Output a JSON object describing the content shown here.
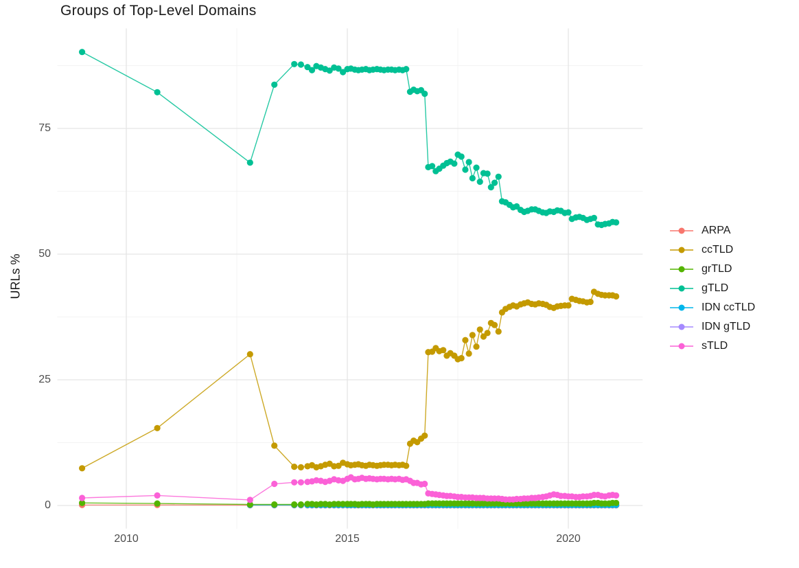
{
  "title": "Groups of Top-Level Domains",
  "y_axis_title": "URLs %",
  "axes": {
    "x_tick_labels": [
      "2010",
      "2015",
      "2020"
    ],
    "x_tick_values": [
      2010,
      2015,
      2020
    ],
    "x_minor_values": [
      2012.5,
      2017.5
    ],
    "y_tick_labels": [
      "0",
      "25",
      "50",
      "75"
    ],
    "y_tick_values": [
      0,
      25,
      50,
      75
    ],
    "y_minor_values": [
      12.5,
      37.5,
      62.5,
      87.5
    ]
  },
  "style": {
    "grid_major_color": "#e5e5e5",
    "grid_minor_color": "#f3f3f3",
    "background": "#ffffff",
    "title_color": "#1a1a1a",
    "tick_label_color": "#4d4d4d"
  },
  "legend": {
    "position": "right",
    "items": [
      {
        "label": "ARPA",
        "color": "#F8766D"
      },
      {
        "label": "ccTLD",
        "color": "#C49A00"
      },
      {
        "label": "grTLD",
        "color": "#53B400"
      },
      {
        "label": "gTLD",
        "color": "#00C094"
      },
      {
        "label": "IDN ccTLD",
        "color": "#00B6EB"
      },
      {
        "label": "IDN gTLD",
        "color": "#A58AFF"
      },
      {
        "label": "sTLD",
        "color": "#FB61D7"
      }
    ]
  },
  "chart_data": {
    "type": "line",
    "title": "Groups of Top-Level Domains",
    "xlabel": "",
    "ylabel": "URLs %",
    "xlim": [
      2008.44,
      2021.68
    ],
    "ylim": [
      -4.6,
      94.9
    ],
    "grid": true,
    "legend_position": "right",
    "draw_order": [
      "IDN gTLD",
      "ARPA",
      "IDN ccTLD",
      "grTLD",
      "sTLD",
      "ccTLD",
      "gTLD"
    ],
    "x": [
      2009.0,
      2010.7,
      2012.8,
      2013.35,
      2013.8,
      2013.95,
      2014.1,
      2014.2,
      2014.3,
      2014.4,
      2014.5,
      2014.6,
      2014.7,
      2014.8,
      2014.9,
      2015.0,
      2015.08,
      2015.17,
      2015.25,
      2015.33,
      2015.42,
      2015.5,
      2015.58,
      2015.67,
      2015.75,
      2015.83,
      2015.92,
      2016.0,
      2016.08,
      2016.17,
      2016.25,
      2016.33,
      2016.42,
      2016.5,
      2016.58,
      2016.67,
      2016.75,
      2016.83,
      2016.92,
      2017.0,
      2017.08,
      2017.17,
      2017.25,
      2017.33,
      2017.42,
      2017.5,
      2017.58,
      2017.67,
      2017.75,
      2017.83,
      2017.92,
      2018.0,
      2018.08,
      2018.17,
      2018.25,
      2018.33,
      2018.42,
      2018.5,
      2018.58,
      2018.67,
      2018.75,
      2018.83,
      2018.92,
      2019.0,
      2019.08,
      2019.17,
      2019.25,
      2019.33,
      2019.42,
      2019.5,
      2019.58,
      2019.67,
      2019.75,
      2019.83,
      2019.92,
      2020.0,
      2020.08,
      2020.17,
      2020.25,
      2020.33,
      2020.42,
      2020.5,
      2020.58,
      2020.67,
      2020.75,
      2020.83,
      2020.92,
      2021.0,
      2021.08
    ],
    "series": [
      {
        "name": "ARPA",
        "color": "#F8766D",
        "values": [
          0.1,
          0.1,
          0.05,
          0.05,
          0.05,
          0.05,
          0.05,
          0.05,
          0.05,
          0.05,
          0.05,
          0.05,
          0.05,
          0.05,
          0.05,
          0.05,
          0.05,
          0.05,
          0.05,
          0.05,
          0.05,
          0.05,
          0.05,
          0.05,
          0.05,
          0.05,
          0.05,
          0.05,
          0.05,
          0.05,
          0.05,
          0.05,
          0.05,
          0.05,
          0.05,
          0.05,
          0.05,
          0.05,
          0.05,
          0.05,
          0.05,
          0.05,
          0.05,
          0.05,
          0.05,
          0.05,
          0.05,
          0.05,
          0.05,
          0.05,
          0.05,
          0.05,
          0.05,
          0.05,
          0.05,
          0.05,
          0.05,
          0.05,
          0.05,
          0.05,
          0.05,
          0.05,
          0.05,
          0.05,
          0.05,
          0.05,
          0.05,
          0.05,
          0.05,
          0.05,
          0.05,
          0.05,
          0.05,
          0.05,
          0.05,
          0.05,
          0.05,
          0.05,
          0.05,
          0.05,
          0.05,
          0.05,
          0.05,
          0.05,
          0.05,
          0.05,
          0.05,
          0.05,
          0.05
        ]
      },
      {
        "name": "ccTLD",
        "color": "#C49A00",
        "values": [
          7.4,
          15.4,
          30.1,
          11.9,
          7.7,
          7.6,
          7.8,
          8.0,
          7.6,
          7.8,
          8.1,
          8.3,
          7.8,
          7.9,
          8.5,
          8.2,
          8.0,
          8.1,
          8.2,
          8.0,
          7.9,
          8.1,
          8.0,
          7.9,
          8.0,
          8.1,
          8.1,
          8.0,
          8.1,
          8.0,
          8.1,
          7.9,
          12.3,
          12.9,
          12.6,
          13.3,
          13.9,
          30.5,
          30.6,
          31.3,
          30.7,
          30.9,
          29.8,
          30.3,
          29.8,
          29.1,
          29.3,
          32.9,
          30.2,
          33.9,
          31.6,
          35.0,
          33.6,
          34.3,
          36.3,
          35.9,
          34.6,
          38.4,
          39.1,
          39.5,
          39.8,
          39.6,
          40.0,
          40.2,
          40.4,
          40.1,
          40.0,
          40.2,
          40.1,
          39.9,
          39.5,
          39.3,
          39.6,
          39.7,
          39.8,
          39.8,
          41.1,
          40.9,
          40.7,
          40.6,
          40.4,
          40.5,
          42.5,
          42.1,
          41.9,
          41.8,
          41.8,
          41.8,
          41.6
        ]
      },
      {
        "name": "grTLD",
        "color": "#53B400",
        "values": [
          0.5,
          0.4,
          0.2,
          0.2,
          0.2,
          0.2,
          0.3,
          0.3,
          0.2,
          0.3,
          0.3,
          0.2,
          0.3,
          0.3,
          0.3,
          0.3,
          0.3,
          0.3,
          0.2,
          0.3,
          0.3,
          0.3,
          0.2,
          0.3,
          0.3,
          0.3,
          0.3,
          0.3,
          0.3,
          0.3,
          0.3,
          0.3,
          0.3,
          0.3,
          0.3,
          0.3,
          0.3,
          0.4,
          0.4,
          0.4,
          0.4,
          0.4,
          0.4,
          0.4,
          0.4,
          0.4,
          0.4,
          0.4,
          0.4,
          0.4,
          0.4,
          0.4,
          0.4,
          0.4,
          0.4,
          0.4,
          0.4,
          0.4,
          0.4,
          0.4,
          0.4,
          0.4,
          0.4,
          0.4,
          0.4,
          0.4,
          0.4,
          0.4,
          0.4,
          0.4,
          0.4,
          0.4,
          0.4,
          0.4,
          0.4,
          0.4,
          0.4,
          0.4,
          0.4,
          0.4,
          0.4,
          0.4,
          0.5,
          0.5,
          0.4,
          0.4,
          0.4,
          0.5,
          0.5
        ]
      },
      {
        "name": "gTLD",
        "color": "#00C094",
        "values": [
          90.2,
          82.2,
          68.2,
          83.7,
          87.8,
          87.7,
          87.2,
          86.6,
          87.4,
          87.1,
          86.8,
          86.5,
          87.1,
          86.9,
          86.2,
          86.8,
          86.9,
          86.7,
          86.6,
          86.7,
          86.8,
          86.6,
          86.7,
          86.8,
          86.7,
          86.6,
          86.7,
          86.7,
          86.6,
          86.7,
          86.6,
          86.8,
          82.3,
          82.7,
          82.4,
          82.6,
          81.9,
          67.3,
          67.5,
          66.5,
          67.0,
          67.6,
          68.1,
          68.4,
          68.0,
          69.8,
          69.4,
          66.8,
          68.3,
          65.1,
          67.2,
          64.4,
          66.1,
          66.0,
          63.3,
          64.2,
          65.4,
          60.5,
          60.3,
          59.8,
          59.3,
          59.5,
          58.8,
          58.4,
          58.6,
          58.9,
          58.9,
          58.6,
          58.3,
          58.2,
          58.5,
          58.4,
          58.7,
          58.6,
          58.2,
          58.3,
          57.0,
          57.3,
          57.4,
          57.2,
          56.8,
          57.0,
          57.2,
          55.9,
          55.8,
          56.0,
          56.1,
          56.4,
          56.3
        ]
      },
      {
        "name": "IDN ccTLD",
        "color": "#00B6EB",
        "values": [
          null,
          null,
          0.1,
          0.1,
          0.1,
          0.1,
          0.1,
          0.1,
          0.1,
          0.1,
          0.1,
          0.1,
          0.1,
          0.1,
          0.1,
          0.1,
          0.1,
          0.1,
          0.1,
          0.1,
          0.1,
          0.1,
          0.1,
          0.1,
          0.1,
          0.1,
          0.1,
          0.1,
          0.1,
          0.1,
          0.1,
          0.1,
          0.1,
          0.1,
          0.1,
          0.1,
          0.1,
          0.1,
          0.1,
          0.1,
          0.1,
          0.1,
          0.1,
          0.1,
          0.1,
          0.1,
          0.1,
          0.1,
          0.1,
          0.1,
          0.1,
          0.1,
          0.1,
          0.1,
          0.1,
          0.1,
          0.1,
          0.1,
          0.1,
          0.1,
          0.1,
          0.1,
          0.1,
          0.1,
          0.1,
          0.1,
          0.1,
          0.1,
          0.1,
          0.1,
          0.1,
          0.1,
          0.1,
          0.1,
          0.1,
          0.1,
          0.1,
          0.1,
          0.1,
          0.1,
          0.1,
          0.1,
          0.1,
          0.1,
          0.1,
          0.1,
          0.1,
          0.1,
          0.1
        ]
      },
      {
        "name": "IDN gTLD",
        "color": "#A58AFF",
        "values": [
          null,
          null,
          null,
          null,
          null,
          null,
          0.05,
          0.05,
          0.05,
          0.05,
          0.05,
          0.05,
          0.05,
          0.05,
          0.05,
          0.05,
          0.05,
          0.05,
          0.05,
          0.05,
          0.05,
          0.05,
          0.05,
          0.05,
          0.05,
          0.05,
          0.05,
          0.05,
          0.05,
          0.05,
          0.05,
          0.05,
          0.05,
          0.05,
          0.05,
          0.05,
          0.05,
          0.05,
          0.05,
          0.05,
          0.05,
          0.05,
          0.05,
          0.05,
          0.05,
          0.05,
          0.05,
          0.05,
          0.05,
          0.05,
          0.05,
          0.05,
          0.05,
          0.05,
          0.05,
          0.05,
          0.05,
          0.05,
          0.05,
          0.05,
          0.05,
          0.05,
          0.05,
          0.05,
          0.05,
          0.05,
          0.05,
          0.05,
          0.05,
          0.05,
          0.05,
          0.05,
          0.05,
          0.05,
          0.05,
          0.05,
          0.05,
          0.05,
          0.05,
          0.05,
          0.05,
          0.05,
          0.05,
          0.05,
          0.05,
          0.05,
          0.05,
          0.05,
          0.05
        ]
      },
      {
        "name": "sTLD",
        "color": "#FB61D7",
        "values": [
          1.5,
          2.0,
          1.1,
          4.3,
          4.6,
          4.6,
          4.7,
          4.8,
          5.0,
          4.9,
          4.7,
          4.9,
          5.2,
          5.0,
          4.9,
          5.3,
          5.6,
          5.2,
          5.3,
          5.5,
          5.3,
          5.4,
          5.3,
          5.2,
          5.3,
          5.3,
          5.2,
          5.3,
          5.2,
          5.3,
          5.1,
          5.2,
          4.9,
          4.5,
          4.5,
          4.2,
          4.3,
          2.4,
          2.3,
          2.2,
          2.1,
          2.0,
          1.9,
          1.9,
          1.8,
          1.7,
          1.7,
          1.6,
          1.6,
          1.6,
          1.5,
          1.5,
          1.5,
          1.4,
          1.4,
          1.4,
          1.4,
          1.3,
          1.2,
          1.2,
          1.2,
          1.3,
          1.3,
          1.4,
          1.4,
          1.5,
          1.5,
          1.6,
          1.7,
          1.8,
          2.0,
          2.2,
          2.1,
          1.9,
          1.9,
          1.8,
          1.8,
          1.7,
          1.7,
          1.8,
          1.8,
          1.9,
          2.1,
          2.1,
          1.9,
          1.8,
          2.0,
          2.1,
          2.0
        ]
      }
    ]
  }
}
